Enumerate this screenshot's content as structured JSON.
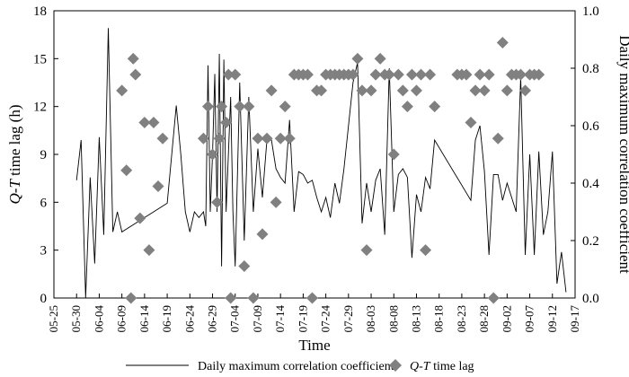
{
  "chart_data": {
    "type": "line+scatter",
    "xlabel": "Time",
    "ylabel_left_prefix": "Q-T",
    "ylabel_left_suffix": " time lag (h)",
    "ylabel_right": "Daily maximum correlation coefficient",
    "ylim_left": [
      0,
      18
    ],
    "ylim_right": [
      0,
      1.0
    ],
    "x_day_range": [
      0,
      115
    ],
    "y_ticks_left": [
      "0",
      "3",
      "6",
      "9",
      "12",
      "15",
      "18"
    ],
    "y_ticks_right": [
      "0.0",
      "0.2",
      "0.4",
      "0.6",
      "0.8",
      "1.0"
    ],
    "x_ticks": [
      {
        "day": 0,
        "label": "05-25"
      },
      {
        "day": 5,
        "label": "05-30"
      },
      {
        "day": 10,
        "label": "06-04"
      },
      {
        "day": 15,
        "label": "06-09"
      },
      {
        "day": 20,
        "label": "06-14"
      },
      {
        "day": 25,
        "label": "06-19"
      },
      {
        "day": 30,
        "label": "06-24"
      },
      {
        "day": 35,
        "label": "06-29"
      },
      {
        "day": 40,
        "label": "07-04"
      },
      {
        "day": 45,
        "label": "07-09"
      },
      {
        "day": 50,
        "label": "07-14"
      },
      {
        "day": 55,
        "label": "07-19"
      },
      {
        "day": 60,
        "label": "07-24"
      },
      {
        "day": 65,
        "label": "07-29"
      },
      {
        "day": 70,
        "label": "08-03"
      },
      {
        "day": 75,
        "label": "08-08"
      },
      {
        "day": 80,
        "label": "08-13"
      },
      {
        "day": 85,
        "label": "08-18"
      },
      {
        "day": 90,
        "label": "08-23"
      },
      {
        "day": 95,
        "label": "08-28"
      },
      {
        "day": 100,
        "label": "09-02"
      },
      {
        "day": 105,
        "label": "09-07"
      },
      {
        "day": 110,
        "label": "09-12"
      },
      {
        "day": 115,
        "label": "09-17"
      }
    ],
    "line_series": {
      "name": "Daily maximum correlation coefficient",
      "points": [
        [
          5,
          0.41
        ],
        [
          6,
          0.55
        ],
        [
          7,
          0.0
        ],
        [
          8,
          0.42
        ],
        [
          9,
          0.12
        ],
        [
          10,
          0.56
        ],
        [
          11,
          0.22
        ],
        [
          12,
          0.94
        ],
        [
          13,
          0.23
        ],
        [
          14,
          0.3
        ],
        [
          15,
          0.23
        ],
        [
          25,
          0.33
        ],
        [
          26,
          0.5
        ],
        [
          27,
          0.67
        ],
        [
          28,
          0.5
        ],
        [
          29,
          0.3
        ],
        [
          30,
          0.23
        ],
        [
          31,
          0.3
        ],
        [
          32,
          0.28
        ],
        [
          33,
          0.3
        ],
        [
          33.5,
          0.25
        ],
        [
          34,
          0.81
        ],
        [
          34.5,
          0.3
        ],
        [
          35,
          0.5
        ],
        [
          35.5,
          0.78
        ],
        [
          36,
          0.3
        ],
        [
          36.5,
          0.85
        ],
        [
          37,
          0.11
        ],
        [
          37.5,
          0.83
        ],
        [
          38,
          0.3
        ],
        [
          38.5,
          0.5
        ],
        [
          39,
          0.7
        ],
        [
          39.5,
          0.3
        ],
        [
          40,
          0.11
        ],
        [
          41,
          0.75
        ],
        [
          42,
          0.2
        ],
        [
          43,
          0.7
        ],
        [
          44,
          0.3
        ],
        [
          45,
          0.52
        ],
        [
          46,
          0.35
        ],
        [
          47,
          0.55
        ],
        [
          48,
          0.55
        ],
        [
          49,
          0.45
        ],
        [
          50,
          0.42
        ],
        [
          51,
          0.4
        ],
        [
          52,
          0.62
        ],
        [
          53,
          0.3
        ],
        [
          54,
          0.44
        ],
        [
          55,
          0.43
        ],
        [
          56,
          0.4
        ],
        [
          57,
          0.41
        ],
        [
          58,
          0.35
        ],
        [
          59,
          0.3
        ],
        [
          60,
          0.35
        ],
        [
          61,
          0.28
        ],
        [
          62,
          0.4
        ],
        [
          63,
          0.33
        ],
        [
          64,
          0.45
        ],
        [
          65,
          0.6
        ],
        [
          66,
          0.75
        ],
        [
          67,
          0.82
        ],
        [
          68,
          0.26
        ],
        [
          69,
          0.4
        ],
        [
          70,
          0.3
        ],
        [
          71,
          0.41
        ],
        [
          72,
          0.45
        ],
        [
          73,
          0.22
        ],
        [
          74,
          0.8
        ],
        [
          75,
          0.3
        ],
        [
          76,
          0.43
        ],
        [
          77,
          0.45
        ],
        [
          78,
          0.42
        ],
        [
          79,
          0.14
        ],
        [
          80,
          0.36
        ],
        [
          81,
          0.3
        ],
        [
          82,
          0.42
        ],
        [
          83,
          0.38
        ],
        [
          84,
          0.55
        ],
        [
          92,
          0.34
        ],
        [
          93,
          0.55
        ],
        [
          94,
          0.6
        ],
        [
          95,
          0.44
        ],
        [
          96,
          0.15
        ],
        [
          97,
          0.43
        ],
        [
          98,
          0.43
        ],
        [
          99,
          0.34
        ],
        [
          100,
          0.4
        ],
        [
          101,
          0.35
        ],
        [
          102,
          0.3
        ],
        [
          103,
          0.77
        ],
        [
          104,
          0.15
        ],
        [
          105,
          0.5
        ],
        [
          106,
          0.15
        ],
        [
          107,
          0.51
        ],
        [
          108,
          0.22
        ],
        [
          109,
          0.3
        ],
        [
          110,
          0.51
        ],
        [
          111,
          0.05
        ],
        [
          112,
          0.16
        ],
        [
          113,
          0.02
        ]
      ]
    },
    "scatter_series": {
      "name_prefix": "Q-T",
      "name_suffix": " time lag",
      "points": [
        [
          15,
          13
        ],
        [
          16,
          8
        ],
        [
          17,
          0
        ],
        [
          17.5,
          15
        ],
        [
          18,
          14
        ],
        [
          19,
          5
        ],
        [
          20,
          11
        ],
        [
          21,
          3
        ],
        [
          22,
          11
        ],
        [
          23,
          7
        ],
        [
          24,
          10
        ],
        [
          33,
          10
        ],
        [
          34,
          12
        ],
        [
          35,
          9
        ],
        [
          36,
          6
        ],
        [
          36.5,
          10
        ],
        [
          37,
          12
        ],
        [
          38,
          11
        ],
        [
          38.5,
          14
        ],
        [
          39,
          0
        ],
        [
          40,
          14
        ],
        [
          41,
          12
        ],
        [
          42,
          2
        ],
        [
          43,
          12
        ],
        [
          44,
          0
        ],
        [
          45,
          10
        ],
        [
          46,
          4
        ],
        [
          47,
          10
        ],
        [
          48,
          13
        ],
        [
          49,
          6
        ],
        [
          50,
          10
        ],
        [
          51,
          12
        ],
        [
          52,
          10
        ],
        [
          53,
          14
        ],
        [
          54,
          14
        ],
        [
          55,
          14
        ],
        [
          56,
          14
        ],
        [
          57,
          0
        ],
        [
          58,
          13
        ],
        [
          59,
          13
        ],
        [
          60,
          14
        ],
        [
          61,
          14
        ],
        [
          62,
          14
        ],
        [
          63,
          14
        ],
        [
          64,
          14
        ],
        [
          65,
          14
        ],
        [
          66,
          14
        ],
        [
          67,
          15
        ],
        [
          68,
          13
        ],
        [
          69,
          3
        ],
        [
          70,
          13
        ],
        [
          71,
          14
        ],
        [
          72,
          15
        ],
        [
          73,
          14
        ],
        [
          74,
          14
        ],
        [
          75,
          9
        ],
        [
          76,
          14
        ],
        [
          77,
          13
        ],
        [
          78,
          12
        ],
        [
          79,
          14
        ],
        [
          80,
          13
        ],
        [
          81,
          14
        ],
        [
          82,
          3
        ],
        [
          83,
          14
        ],
        [
          84,
          12
        ],
        [
          89,
          14
        ],
        [
          90,
          14
        ],
        [
          91,
          14
        ],
        [
          92,
          11
        ],
        [
          93,
          13
        ],
        [
          94,
          14
        ],
        [
          95,
          13
        ],
        [
          96,
          14
        ],
        [
          97,
          0
        ],
        [
          98,
          10
        ],
        [
          99,
          16
        ],
        [
          100,
          13
        ],
        [
          101,
          14
        ],
        [
          102,
          14
        ],
        [
          103,
          14
        ],
        [
          104,
          13
        ],
        [
          105,
          14
        ],
        [
          106,
          14
        ],
        [
          107,
          14
        ]
      ]
    },
    "colors": {
      "line": "#000000",
      "marker": "#808080"
    }
  }
}
